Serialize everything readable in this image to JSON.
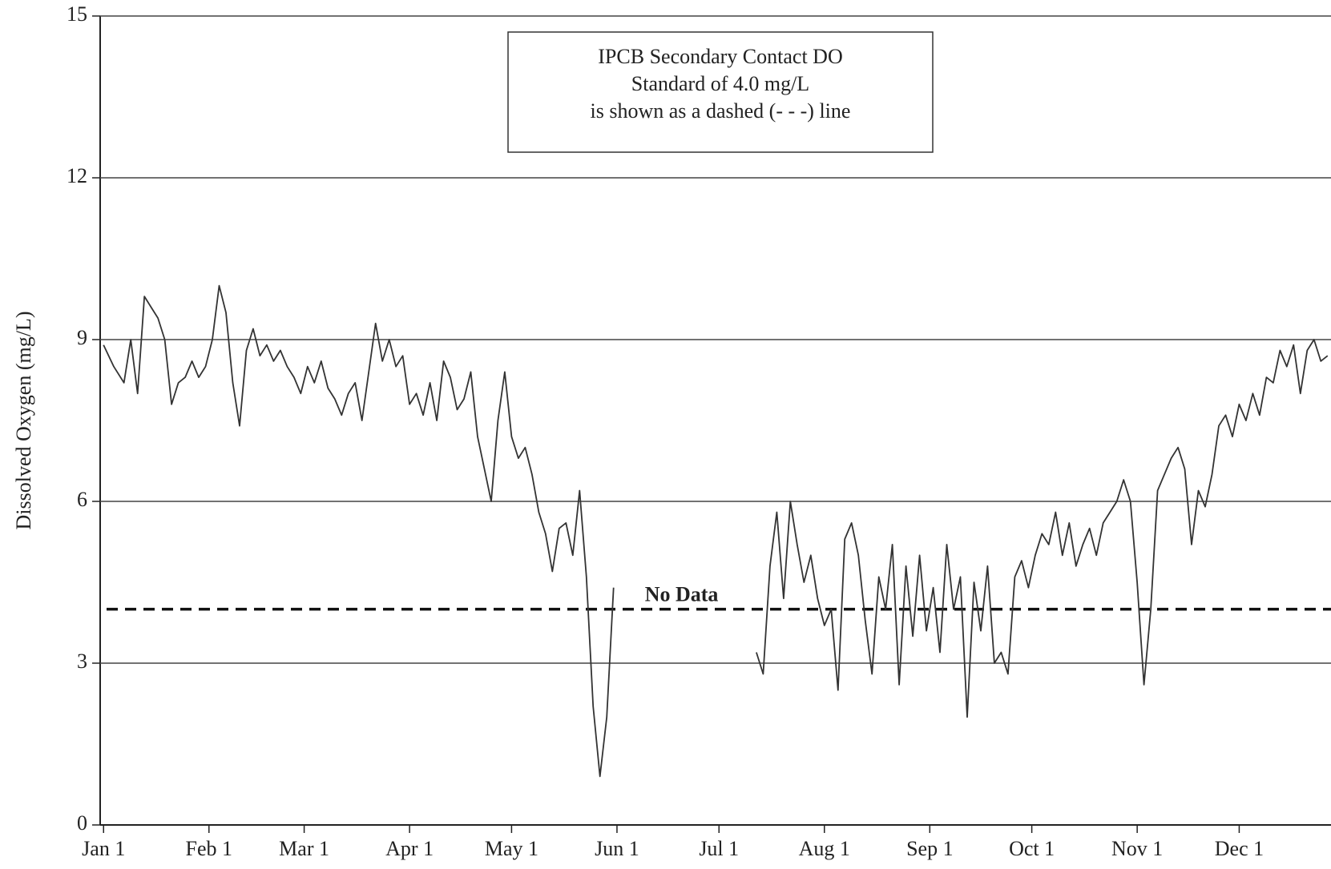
{
  "chart_data": {
    "type": "line",
    "y_label": "Dissolved Oxygen (mg/L)",
    "annotation_box": [
      "IPCB Secondary Contact DO",
      "Standard of 4.0 mg/L",
      "is shown as a dashed (- - -) line"
    ],
    "gap_label": "No Data",
    "standard": 4.0,
    "color": "#333333",
    "grid": true,
    "xlim": [
      0,
      362
    ],
    "xticks": [
      {
        "value": 1,
        "label": "Jan 1"
      },
      {
        "value": 32,
        "label": "Feb 1"
      },
      {
        "value": 60,
        "label": "Mar 1"
      },
      {
        "value": 91,
        "label": "Apr 1"
      },
      {
        "value": 121,
        "label": "May 1"
      },
      {
        "value": 152,
        "label": "Jun 1"
      },
      {
        "value": 182,
        "label": "Jul 1"
      },
      {
        "value": 213,
        "label": "Aug 1"
      },
      {
        "value": 244,
        "label": "Sep 1"
      },
      {
        "value": 274,
        "label": "Oct 1"
      },
      {
        "value": 305,
        "label": "Nov 1"
      },
      {
        "value": 335,
        "label": "Dec 1"
      }
    ],
    "ylim": [
      0,
      15
    ],
    "yticks": [
      0,
      3,
      6,
      9,
      12,
      15
    ],
    "x": [
      1,
      4,
      7,
      9,
      11,
      13,
      15,
      17,
      19,
      21,
      23,
      25,
      27,
      29,
      31,
      33,
      35,
      37,
      39,
      41,
      43,
      45,
      47,
      49,
      51,
      53,
      55,
      57,
      59,
      61,
      63,
      65,
      67,
      69,
      71,
      73,
      75,
      77,
      79,
      81,
      83,
      85,
      87,
      89,
      91,
      93,
      95,
      97,
      99,
      101,
      103,
      105,
      107,
      109,
      111,
      113,
      115,
      117,
      119,
      121,
      123,
      125,
      127,
      129,
      131,
      133,
      135,
      137,
      139,
      141,
      143,
      145,
      147,
      149,
      151,
      153,
      193,
      195,
      197,
      199,
      201,
      203,
      205,
      207,
      209,
      211,
      213,
      215,
      217,
      219,
      221,
      223,
      225,
      227,
      229,
      231,
      233,
      235,
      237,
      239,
      241,
      243,
      245,
      247,
      249,
      251,
      253,
      255,
      257,
      259,
      261,
      263,
      265,
      267,
      269,
      271,
      273,
      275,
      277,
      279,
      281,
      283,
      285,
      287,
      289,
      291,
      293,
      295,
      297,
      299,
      301,
      303,
      305,
      307,
      309,
      311,
      313,
      315,
      317,
      319,
      321,
      323,
      325,
      327,
      329,
      331,
      333,
      335,
      337,
      339,
      341,
      343,
      345,
      347,
      349,
      351,
      353,
      355,
      357,
      359,
      361
    ],
    "values": [
      8.9,
      8.5,
      8.2,
      9.0,
      8.0,
      9.8,
      9.6,
      9.4,
      9.0,
      7.8,
      8.2,
      8.3,
      8.6,
      8.3,
      8.5,
      9.0,
      10.0,
      9.5,
      8.2,
      7.4,
      8.8,
      9.2,
      8.7,
      8.9,
      8.6,
      8.8,
      8.5,
      8.3,
      8.0,
      8.5,
      8.2,
      8.6,
      8.1,
      7.9,
      7.6,
      8.0,
      8.2,
      7.5,
      8.4,
      9.3,
      8.6,
      9.0,
      8.5,
      8.7,
      7.8,
      8.0,
      7.6,
      8.2,
      7.5,
      8.6,
      8.3,
      7.7,
      7.9,
      8.4,
      7.2,
      6.6,
      6.0,
      7.5,
      8.4,
      7.2,
      6.8,
      7.0,
      6.5,
      5.8,
      5.4,
      4.7,
      5.5,
      5.6,
      5.0,
      6.2,
      4.6,
      2.2,
      0.9,
      2.0,
      4.4,
      null,
      3.2,
      2.8,
      4.8,
      5.8,
      4.2,
      6.0,
      5.2,
      4.5,
      5.0,
      4.2,
      3.7,
      4.0,
      2.5,
      5.3,
      5.6,
      5.0,
      3.8,
      2.8,
      4.6,
      4.0,
      5.2,
      2.6,
      4.8,
      3.5,
      5.0,
      3.6,
      4.4,
      3.2,
      5.2,
      4.0,
      4.6,
      2.0,
      4.5,
      3.6,
      4.8,
      3.0,
      3.2,
      2.8,
      4.6,
      4.9,
      4.4,
      5.0,
      5.4,
      5.2,
      5.8,
      5.0,
      5.6,
      4.8,
      5.2,
      5.5,
      5.0,
      5.6,
      5.8,
      6.0,
      6.4,
      6.0,
      4.5,
      2.6,
      4.0,
      6.2,
      6.5,
      6.8,
      7.0,
      6.6,
      5.2,
      6.2,
      5.9,
      6.5,
      7.4,
      7.6,
      7.2,
      7.8,
      7.5,
      8.0,
      7.6,
      8.3,
      8.2,
      8.8,
      8.5,
      8.9,
      8.0,
      8.8,
      9.0,
      8.6,
      8.7
    ]
  }
}
